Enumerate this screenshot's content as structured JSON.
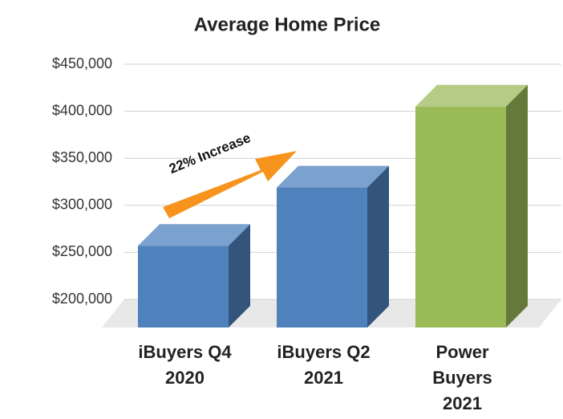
{
  "chart_data": {
    "type": "bar3d",
    "title": "Average Home Price",
    "categories": [
      [
        "iBuyers Q4",
        "2020"
      ],
      [
        "iBuyers Q2",
        "2021"
      ],
      [
        "Power",
        "Buyers",
        "2021"
      ]
    ],
    "values": [
      280000,
      342000,
      428000
    ],
    "colors": [
      "#4f81bd",
      "#4f81bd",
      "#9bbb59"
    ],
    "ylim": [
      200000,
      450000
    ],
    "yticks": [
      {
        "value": 200000,
        "label": "$200,000"
      },
      {
        "value": 250000,
        "label": "$250,000"
      },
      {
        "value": 300000,
        "label": "$300,000"
      },
      {
        "value": 350000,
        "label": "$350,000"
      },
      {
        "value": 400000,
        "label": "$400,000"
      },
      {
        "value": 450000,
        "label": "$450,000"
      }
    ],
    "grid": true,
    "annotation": "22% Increase"
  }
}
